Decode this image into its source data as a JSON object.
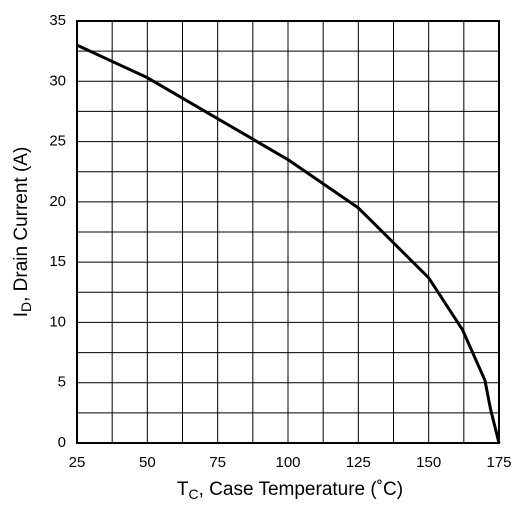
{
  "chart_data": {
    "type": "line",
    "ylabel": {
      "main": "I",
      "sub": "D",
      "rest": ", Drain Current (A)"
    },
    "xlabel": {
      "main": "T",
      "sub": "C",
      "rest": ", Case Temperature   (˚C)"
    },
    "x": [
      25,
      50,
      75,
      100,
      125,
      150,
      162,
      170,
      172,
      175
    ],
    "series": [
      {
        "color": "#000000",
        "values": [
          33,
          30.3,
          26.9,
          23.5,
          19.5,
          13.7,
          9.4,
          5.2,
          2.8,
          0
        ]
      }
    ],
    "xlim": [
      25,
      175
    ],
    "xticks": [
      25,
      50,
      75,
      100,
      125,
      150,
      175
    ],
    "ylim": [
      0,
      35
    ],
    "yticks": [
      0,
      5,
      10,
      15,
      20,
      25,
      30,
      35
    ],
    "grid": true,
    "minor_grid": true
  }
}
